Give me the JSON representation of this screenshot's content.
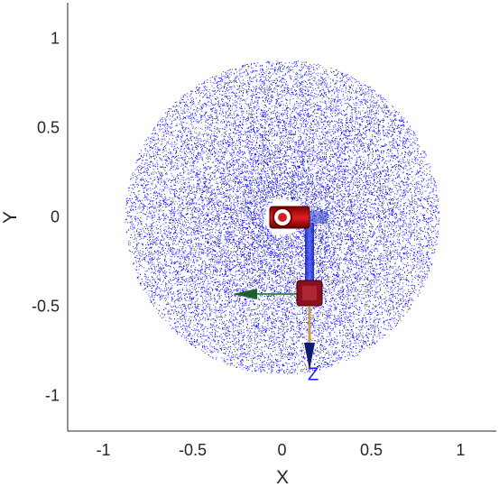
{
  "chart_data": {
    "type": "scatter",
    "title": "",
    "xlabel": "X",
    "ylabel": "Y",
    "xlim": [
      -1.2,
      1.2
    ],
    "ylim": [
      -1.2,
      1.2
    ],
    "xticks": [
      -1,
      -0.5,
      0,
      0.5,
      1
    ],
    "yticks": [
      -1,
      -0.5,
      0,
      0.5,
      1
    ],
    "xtick_labels": [
      "-1",
      "-0.5",
      "0",
      "0.5",
      "1"
    ],
    "ytick_labels": [
      "-1",
      "-0.5",
      "0",
      "0.5",
      "1"
    ],
    "grid": false,
    "series": [
      {
        "color": "#0000ff",
        "point_cloud": {
          "center": [
            0,
            0
          ],
          "inner_radius": 0.1,
          "outer_radius": 0.88,
          "approx_points": 20000
        }
      }
    ],
    "annotations": [
      {
        "text": "Z",
        "x": 0.175,
        "y": -0.88,
        "color": "#1a1aff"
      }
    ],
    "overlay_model": {
      "description": "robot arm kinematic frames",
      "base_joint": [
        0,
        0
      ],
      "elbow_joint": [
        0.15,
        -0.45
      ],
      "end_point": [
        0.15,
        -0.85
      ],
      "link_color": "#b00000",
      "z_axis_color": "#0033aa",
      "x_axis_color": "#2e7d32"
    }
  }
}
